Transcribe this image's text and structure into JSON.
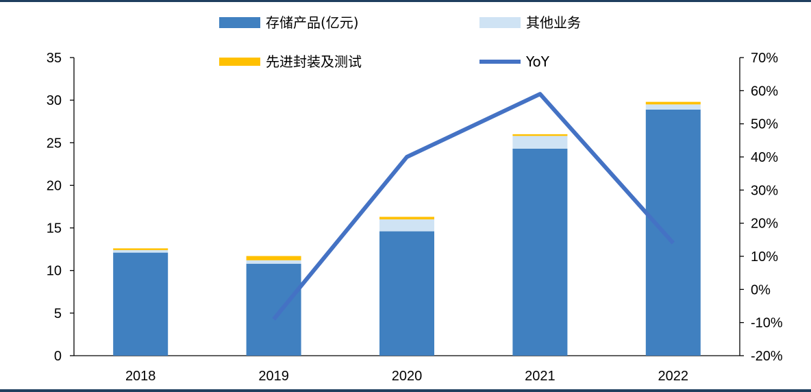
{
  "chart_data": {
    "type": "bar",
    "stacked": true,
    "categories": [
      "2018",
      "2019",
      "2020",
      "2021",
      "2022"
    ],
    "series": [
      {
        "name": "存储产品(亿元)",
        "color": "#4080c0",
        "values": [
          12.1,
          10.8,
          14.6,
          24.3,
          28.9
        ]
      },
      {
        "name": "其他业务",
        "color": "#cfe3f4",
        "values": [
          0.3,
          0.4,
          1.4,
          1.5,
          0.6
        ]
      },
      {
        "name": "先进封装及测试",
        "color": "#ffc000",
        "values": [
          0.2,
          0.5,
          0.3,
          0.2,
          0.3
        ]
      }
    ],
    "line": {
      "name": "YoY",
      "color": "#4472c4",
      "axis": "right",
      "values": [
        null,
        -0.09,
        0.4,
        0.59,
        0.14
      ]
    },
    "ylim": [
      0,
      35
    ],
    "yticks": [
      "0",
      "5",
      "10",
      "15",
      "20",
      "25",
      "30",
      "35"
    ],
    "y2lim": [
      -0.2,
      0.7
    ],
    "y2ticks": [
      "-20%",
      "-10%",
      "0%",
      "10%",
      "20%",
      "30%",
      "40%",
      "50%",
      "60%",
      "70%"
    ],
    "legend_position": "top",
    "grid": false
  }
}
